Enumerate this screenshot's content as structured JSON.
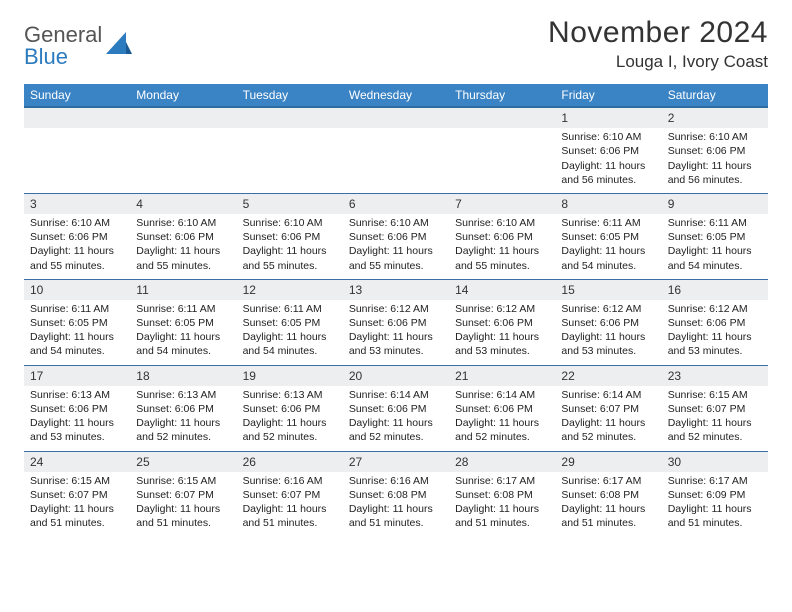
{
  "logo": {
    "word1": "General",
    "word2": "Blue"
  },
  "title": "November 2024",
  "location": "Louga I, Ivory Coast",
  "colors": {
    "header_bg": "#3a83c4",
    "header_border": "#2d6ba3",
    "row_divider": "#3a6fa5",
    "daynum_bg": "#eceef0",
    "logo_blue": "#2d7bbf",
    "text": "#222222"
  },
  "typography": {
    "title_fontsize": 30,
    "location_fontsize": 17,
    "dayheader_fontsize": 12,
    "daynum_fontsize": 12,
    "cell_fontsize": 10.5
  },
  "day_headers": [
    "Sunday",
    "Monday",
    "Tuesday",
    "Wednesday",
    "Thursday",
    "Friday",
    "Saturday"
  ],
  "weeks": [
    [
      null,
      null,
      null,
      null,
      null,
      {
        "n": "1",
        "sr": "6:10 AM",
        "ss": "6:06 PM",
        "dl1": "11 hours",
        "dl2": "and 56 minutes."
      },
      {
        "n": "2",
        "sr": "6:10 AM",
        "ss": "6:06 PM",
        "dl1": "11 hours",
        "dl2": "and 56 minutes."
      }
    ],
    [
      {
        "n": "3",
        "sr": "6:10 AM",
        "ss": "6:06 PM",
        "dl1": "11 hours",
        "dl2": "and 55 minutes."
      },
      {
        "n": "4",
        "sr": "6:10 AM",
        "ss": "6:06 PM",
        "dl1": "11 hours",
        "dl2": "and 55 minutes."
      },
      {
        "n": "5",
        "sr": "6:10 AM",
        "ss": "6:06 PM",
        "dl1": "11 hours",
        "dl2": "and 55 minutes."
      },
      {
        "n": "6",
        "sr": "6:10 AM",
        "ss": "6:06 PM",
        "dl1": "11 hours",
        "dl2": "and 55 minutes."
      },
      {
        "n": "7",
        "sr": "6:10 AM",
        "ss": "6:06 PM",
        "dl1": "11 hours",
        "dl2": "and 55 minutes."
      },
      {
        "n": "8",
        "sr": "6:11 AM",
        "ss": "6:05 PM",
        "dl1": "11 hours",
        "dl2": "and 54 minutes."
      },
      {
        "n": "9",
        "sr": "6:11 AM",
        "ss": "6:05 PM",
        "dl1": "11 hours",
        "dl2": "and 54 minutes."
      }
    ],
    [
      {
        "n": "10",
        "sr": "6:11 AM",
        "ss": "6:05 PM",
        "dl1": "11 hours",
        "dl2": "and 54 minutes."
      },
      {
        "n": "11",
        "sr": "6:11 AM",
        "ss": "6:05 PM",
        "dl1": "11 hours",
        "dl2": "and 54 minutes."
      },
      {
        "n": "12",
        "sr": "6:11 AM",
        "ss": "6:05 PM",
        "dl1": "11 hours",
        "dl2": "and 54 minutes."
      },
      {
        "n": "13",
        "sr": "6:12 AM",
        "ss": "6:06 PM",
        "dl1": "11 hours",
        "dl2": "and 53 minutes."
      },
      {
        "n": "14",
        "sr": "6:12 AM",
        "ss": "6:06 PM",
        "dl1": "11 hours",
        "dl2": "and 53 minutes."
      },
      {
        "n": "15",
        "sr": "6:12 AM",
        "ss": "6:06 PM",
        "dl1": "11 hours",
        "dl2": "and 53 minutes."
      },
      {
        "n": "16",
        "sr": "6:12 AM",
        "ss": "6:06 PM",
        "dl1": "11 hours",
        "dl2": "and 53 minutes."
      }
    ],
    [
      {
        "n": "17",
        "sr": "6:13 AM",
        "ss": "6:06 PM",
        "dl1": "11 hours",
        "dl2": "and 53 minutes."
      },
      {
        "n": "18",
        "sr": "6:13 AM",
        "ss": "6:06 PM",
        "dl1": "11 hours",
        "dl2": "and 52 minutes."
      },
      {
        "n": "19",
        "sr": "6:13 AM",
        "ss": "6:06 PM",
        "dl1": "11 hours",
        "dl2": "and 52 minutes."
      },
      {
        "n": "20",
        "sr": "6:14 AM",
        "ss": "6:06 PM",
        "dl1": "11 hours",
        "dl2": "and 52 minutes."
      },
      {
        "n": "21",
        "sr": "6:14 AM",
        "ss": "6:06 PM",
        "dl1": "11 hours",
        "dl2": "and 52 minutes."
      },
      {
        "n": "22",
        "sr": "6:14 AM",
        "ss": "6:07 PM",
        "dl1": "11 hours",
        "dl2": "and 52 minutes."
      },
      {
        "n": "23",
        "sr": "6:15 AM",
        "ss": "6:07 PM",
        "dl1": "11 hours",
        "dl2": "and 52 minutes."
      }
    ],
    [
      {
        "n": "24",
        "sr": "6:15 AM",
        "ss": "6:07 PM",
        "dl1": "11 hours",
        "dl2": "and 51 minutes."
      },
      {
        "n": "25",
        "sr": "6:15 AM",
        "ss": "6:07 PM",
        "dl1": "11 hours",
        "dl2": "and 51 minutes."
      },
      {
        "n": "26",
        "sr": "6:16 AM",
        "ss": "6:07 PM",
        "dl1": "11 hours",
        "dl2": "and 51 minutes."
      },
      {
        "n": "27",
        "sr": "6:16 AM",
        "ss": "6:08 PM",
        "dl1": "11 hours",
        "dl2": "and 51 minutes."
      },
      {
        "n": "28",
        "sr": "6:17 AM",
        "ss": "6:08 PM",
        "dl1": "11 hours",
        "dl2": "and 51 minutes."
      },
      {
        "n": "29",
        "sr": "6:17 AM",
        "ss": "6:08 PM",
        "dl1": "11 hours",
        "dl2": "and 51 minutes."
      },
      {
        "n": "30",
        "sr": "6:17 AM",
        "ss": "6:09 PM",
        "dl1": "11 hours",
        "dl2": "and 51 minutes."
      }
    ]
  ]
}
